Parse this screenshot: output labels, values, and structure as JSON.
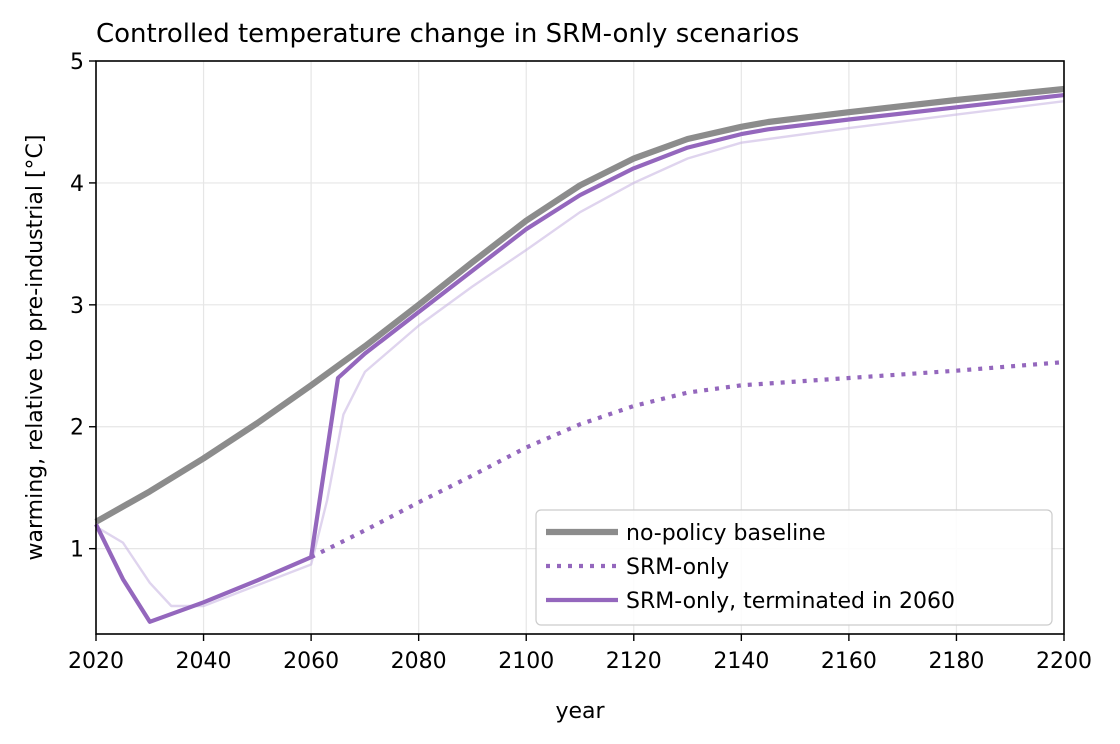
{
  "chart_data": {
    "type": "line",
    "title": "Controlled temperature change in SRM-only scenarios",
    "xlabel": "year",
    "ylabel": "warming, relative to pre-industrial [°C]",
    "xlim": [
      2020,
      2200
    ],
    "ylim": [
      0.3,
      5.0
    ],
    "xticks": [
      2020,
      2040,
      2060,
      2080,
      2100,
      2120,
      2140,
      2160,
      2180,
      2200
    ],
    "yticks": [
      1,
      2,
      3,
      4,
      5
    ],
    "grid": true,
    "legend_position": "lower-right",
    "series": [
      {
        "name": "no-policy baseline",
        "color": "#8c8c8c",
        "style": "solid",
        "in_legend": true,
        "x": [
          2020,
          2030,
          2040,
          2050,
          2060,
          2070,
          2080,
          2090,
          2100,
          2110,
          2120,
          2130,
          2140,
          2145,
          2160,
          2180,
          2200
        ],
        "y": [
          1.22,
          1.47,
          1.74,
          2.03,
          2.34,
          2.66,
          3.0,
          3.35,
          3.69,
          3.98,
          4.2,
          4.36,
          4.46,
          4.5,
          4.58,
          4.68,
          4.77
        ]
      },
      {
        "name": "SRM-only",
        "color": "#9467bd",
        "style": "dotted",
        "in_legend": true,
        "x": [
          2060,
          2070,
          2080,
          2090,
          2100,
          2110,
          2120,
          2130,
          2140,
          2160,
          2180,
          2200
        ],
        "y": [
          0.93,
          1.15,
          1.38,
          1.6,
          1.83,
          2.02,
          2.17,
          2.28,
          2.34,
          2.4,
          2.46,
          2.53
        ]
      },
      {
        "name": "SRM-only, terminated in 2060",
        "color": "#9467bd",
        "style": "solid",
        "in_legend": true,
        "x": [
          2020,
          2025,
          2030,
          2040,
          2050,
          2060,
          2065,
          2070,
          2080,
          2090,
          2100,
          2110,
          2120,
          2130,
          2140,
          2145,
          2160,
          2180,
          2200
        ],
        "y": [
          1.2,
          0.75,
          0.4,
          0.56,
          0.74,
          0.93,
          2.4,
          2.6,
          2.94,
          3.28,
          3.62,
          3.9,
          4.12,
          4.29,
          4.4,
          4.44,
          4.52,
          4.62,
          4.72
        ]
      },
      {
        "name": "",
        "color": "#c5b0e0",
        "style": "faint",
        "in_legend": false,
        "x": [
          2020,
          2025,
          2030,
          2034,
          2040,
          2050,
          2060,
          2063,
          2066,
          2070,
          2080,
          2090,
          2100,
          2110,
          2120,
          2130,
          2140,
          2160,
          2180,
          2200
        ],
        "y": [
          1.18,
          1.05,
          0.72,
          0.53,
          0.53,
          0.7,
          0.87,
          1.4,
          2.1,
          2.45,
          2.83,
          3.15,
          3.45,
          3.76,
          4.0,
          4.2,
          4.33,
          4.45,
          4.56,
          4.67
        ]
      }
    ]
  }
}
